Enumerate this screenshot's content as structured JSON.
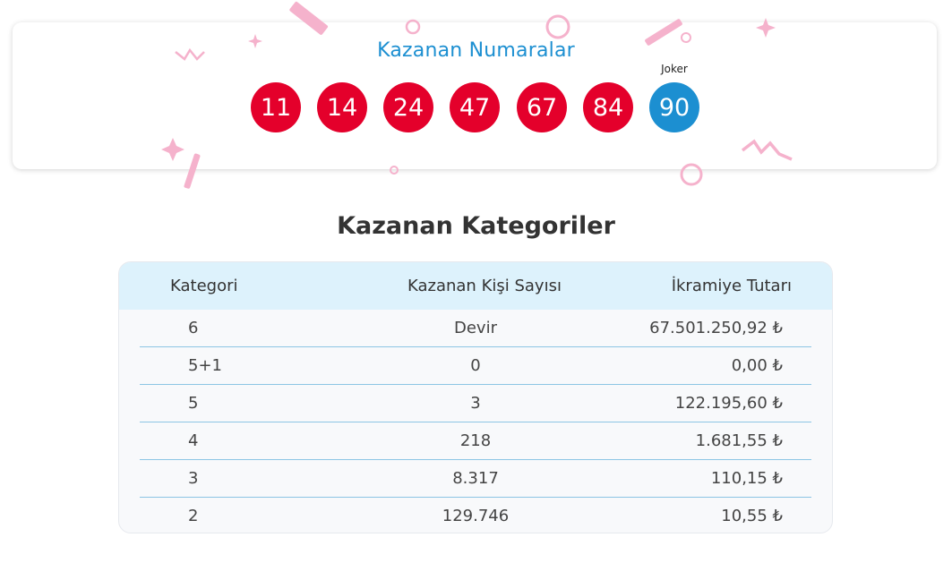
{
  "results": {
    "title": "Kazanan Numaralar",
    "numbers": [
      "11",
      "14",
      "24",
      "47",
      "67",
      "84"
    ],
    "joker_label": "Joker",
    "joker_number": "90"
  },
  "categories": {
    "title": "Kazanan Kategoriler",
    "headers": [
      "Kategori",
      "Kazanan Kişi Sayısı",
      "İkramiye Tutarı"
    ],
    "rows": [
      {
        "category": "6",
        "winners": "Devir",
        "prize": "67.501.250,92 ₺"
      },
      {
        "category": "5+1",
        "winners": "0",
        "prize": "0,00 ₺"
      },
      {
        "category": "5",
        "winners": "3",
        "prize": "122.195,60 ₺"
      },
      {
        "category": "4",
        "winners": "218",
        "prize": "1.681,55 ₺"
      },
      {
        "category": "3",
        "winners": "8.317",
        "prize": "110,15 ₺"
      },
      {
        "category": "2",
        "winners": "129.746",
        "prize": "10,55 ₺"
      }
    ]
  },
  "colors": {
    "ball": "#e4002b",
    "joker_ball": "#1c8fd1",
    "title_accent": "#1c8fd1",
    "header_bg": "#ddf2fc",
    "confetti": "#f7b6cf"
  }
}
